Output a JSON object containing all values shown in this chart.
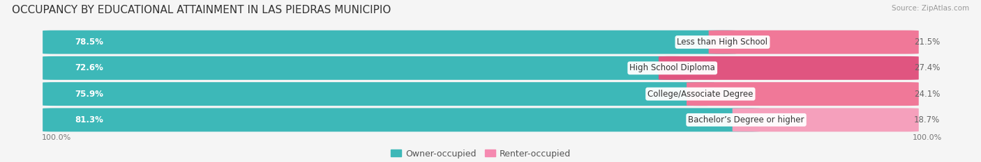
{
  "title": "OCCUPANCY BY EDUCATIONAL ATTAINMENT IN LAS PIEDRAS MUNICIPIO",
  "source": "Source: ZipAtlas.com",
  "categories": [
    "Less than High School",
    "High School Diploma",
    "College/Associate Degree",
    "Bachelor’s Degree or higher"
  ],
  "owner_pct": [
    78.5,
    72.6,
    75.9,
    81.3
  ],
  "renter_pct": [
    21.5,
    27.4,
    24.1,
    18.7
  ],
  "owner_color": "#3db8b8",
  "renter_color": "#f07898",
  "renter_color_alt": "#f589b8",
  "bg_color": "#f5f5f5",
  "bar_track_color": "#e8e8ec",
  "row_colors": [
    "#f0f0f4",
    "#e6e6ea"
  ],
  "title_fontsize": 11,
  "source_fontsize": 7.5,
  "label_fontsize": 8.5,
  "value_fontsize": 8.5,
  "axis_label_fontsize": 8,
  "legend_fontsize": 9
}
